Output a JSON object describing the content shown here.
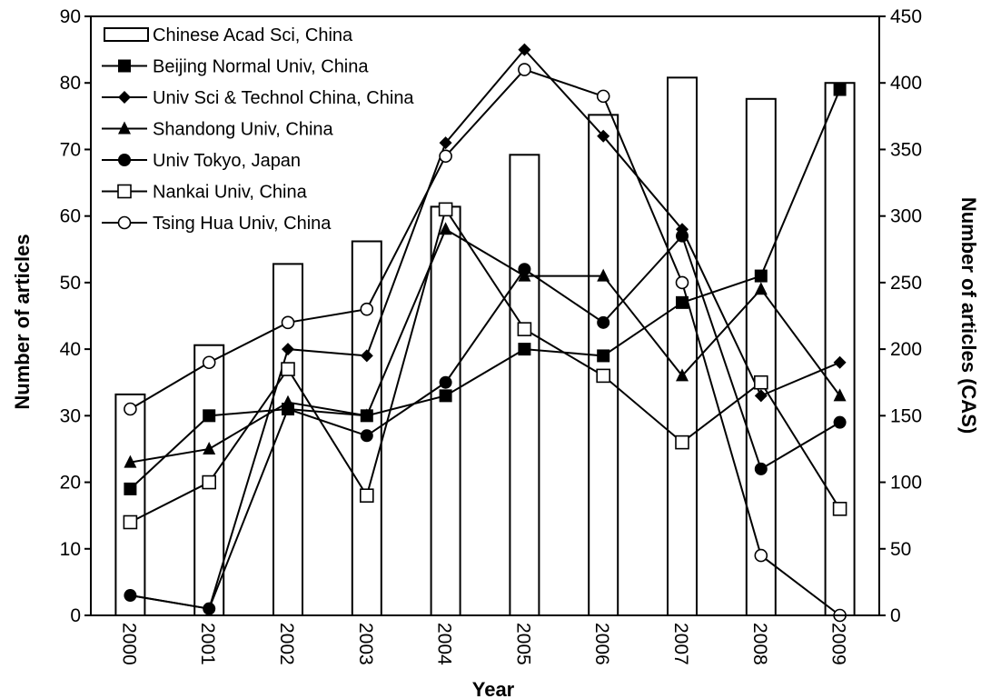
{
  "chart_data": {
    "type": "bar+line",
    "title": "",
    "xlabel": "Year",
    "ylabel": "Number of articles",
    "y2label": "Number of articles (CAS)",
    "categories": [
      "2000",
      "2001",
      "2002",
      "2003",
      "2004",
      "2005",
      "2006",
      "2007",
      "2008",
      "2009"
    ],
    "ylim": [
      0,
      90
    ],
    "yticks": [
      0,
      10,
      20,
      30,
      40,
      50,
      60,
      70,
      80,
      90
    ],
    "y2lim": [
      0,
      450
    ],
    "y2ticks": [
      0,
      50,
      100,
      150,
      200,
      250,
      300,
      350,
      400,
      450
    ],
    "grid": false,
    "legend_position": "top-left",
    "series": [
      {
        "name": "Chinese Acad Sci, China",
        "type": "bar",
        "axis": "right",
        "marker": "bar",
        "values": [
          166,
          203,
          264,
          281,
          307,
          346,
          376,
          404,
          388,
          400
        ]
      },
      {
        "name": "Beijing Normal Univ, China",
        "type": "line",
        "axis": "left",
        "marker": "square-filled",
        "values": [
          19,
          30,
          31,
          30,
          33,
          40,
          39,
          47,
          51,
          79
        ]
      },
      {
        "name": "Univ Sci & Technol China, China",
        "type": "line",
        "axis": "left",
        "marker": "diamond-filled",
        "values": [
          3,
          1,
          40,
          39,
          71,
          85,
          72,
          58,
          33,
          38
        ]
      },
      {
        "name": "Shandong Univ, China",
        "type": "line",
        "axis": "left",
        "marker": "triangle-filled",
        "values": [
          23,
          25,
          32,
          30,
          58,
          51,
          51,
          36,
          49,
          33
        ]
      },
      {
        "name": "Univ Tokyo, Japan",
        "type": "line",
        "axis": "left",
        "marker": "circle-filled",
        "values": [
          3,
          1,
          31,
          27,
          35,
          52,
          44,
          57,
          22,
          29
        ]
      },
      {
        "name": "Nankai Univ, China",
        "type": "line",
        "axis": "left",
        "marker": "square-open",
        "values": [
          14,
          20,
          37,
          18,
          61,
          43,
          36,
          26,
          35,
          16
        ]
      },
      {
        "name": "Tsing Hua Univ, China",
        "type": "line",
        "axis": "left",
        "marker": "circle-open",
        "values": [
          31,
          38,
          44,
          46,
          69,
          82,
          78,
          50,
          9,
          0
        ]
      }
    ]
  }
}
